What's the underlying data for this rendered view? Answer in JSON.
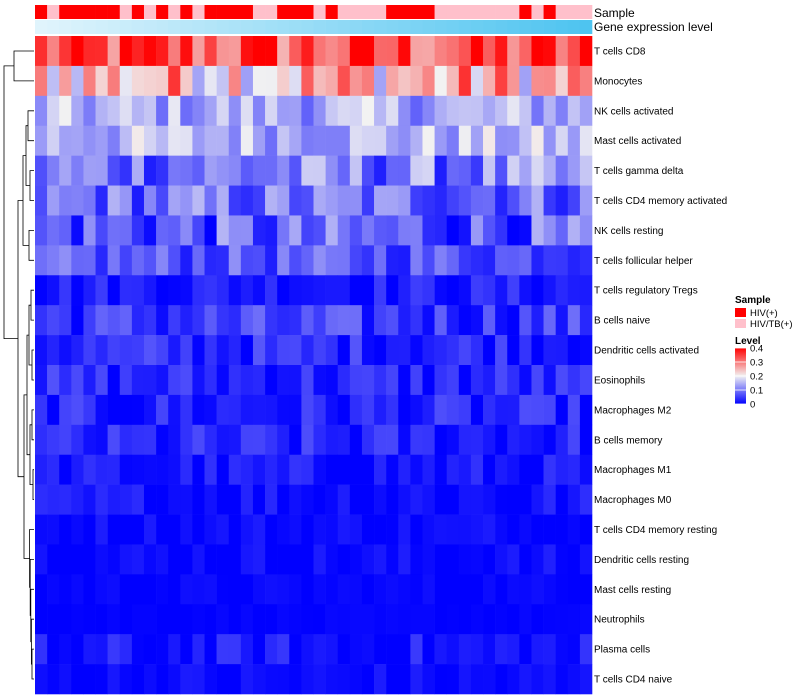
{
  "chart_data": {
    "type": "heatmap",
    "tracks": [
      "Sample",
      "Gene expression level"
    ],
    "rows": [
      "T cells CD8",
      "Monocytes",
      "NK cells activated",
      "Mast cells activated",
      "T cells gamma delta",
      "T cells CD4 memory activated",
      "NK cells resting",
      "T cells follicular helper",
      "T cells regulatory  Tregs",
      "B cells naive",
      "Dendritic cells activated",
      "Eosinophils",
      "Macrophages M2",
      "B cells memory",
      "Macrophages M1",
      "Macrophages M0",
      "T cells CD4 memory resting",
      "Dendritic cells resting",
      "Mast cells resting",
      "Neutrophils",
      "Plasma cells",
      "T cells CD4 naive"
    ],
    "columns_count": 46,
    "sample_groups": [
      "HIV(+)",
      "HIV/TB(+)",
      "HIV(+)",
      "HIV(+)",
      "HIV(+)",
      "HIV(+)",
      "HIV(+)",
      "HIV/TB(+)",
      "HIV(+)",
      "HIV/TB(+)",
      "HIV(+)",
      "HIV/TB(+)",
      "HIV(+)",
      "HIV/TB(+)",
      "HIV(+)",
      "HIV(+)",
      "HIV(+)",
      "HIV(+)",
      "HIV/TB(+)",
      "HIV/TB(+)",
      "HIV(+)",
      "HIV(+)",
      "HIV(+)",
      "HIV/TB(+)",
      "HIV(+)",
      "HIV/TB(+)",
      "HIV/TB(+)",
      "HIV/TB(+)",
      "HIV/TB(+)",
      "HIV(+)",
      "HIV(+)",
      "HIV(+)",
      "HIV(+)",
      "HIV/TB(+)",
      "HIV/TB(+)",
      "HIV/TB(+)",
      "HIV/TB(+)",
      "HIV/TB(+)",
      "HIV/TB(+)",
      "HIV/TB(+)",
      "HIV(+)",
      "HIV/TB(+)",
      "HIV(+)",
      "HIV/TB(+)",
      "HIV/TB(+)",
      "HIV/TB(+)"
    ],
    "row_mean_level": [
      0.33,
      0.25,
      0.14,
      0.15,
      0.1,
      0.09,
      0.07,
      0.07,
      0.025,
      0.045,
      0.035,
      0.03,
      0.025,
      0.025,
      0.015,
      0.012,
      0.007,
      0.007,
      0.004,
      0.002,
      0.01,
      0.006
    ],
    "row_spread": [
      0.1,
      0.12,
      0.06,
      0.06,
      0.08,
      0.07,
      0.08,
      0.05,
      0.03,
      0.05,
      0.04,
      0.04,
      0.04,
      0.04,
      0.03,
      0.03,
      0.02,
      0.02,
      0.01,
      0.005,
      0.04,
      0.02
    ],
    "legend": {
      "sample": {
        "title": "Sample",
        "entries": [
          {
            "label": "HIV(+)",
            "color": "#ff0000"
          },
          {
            "label": "HIV/TB(+)",
            "color": "#ffc0cb"
          }
        ]
      },
      "level": {
        "title": "Level",
        "min": 0,
        "max": 0.4,
        "ticks": [
          {
            "value": 0.4,
            "label": "0.4"
          },
          {
            "value": 0.3,
            "label": "0.3"
          },
          {
            "value": 0.2,
            "label": "0.2"
          },
          {
            "value": 0.1,
            "label": "0.1"
          },
          {
            "value": 0,
            "label": "0"
          }
        ]
      }
    },
    "colors": {
      "low": "#0000ff",
      "mid": "#f2f2f2",
      "high": "#ff0000",
      "track_light": "#e0f4fc",
      "track_dark": "#4ec4f0",
      "dendrogram": "#000000"
    }
  }
}
